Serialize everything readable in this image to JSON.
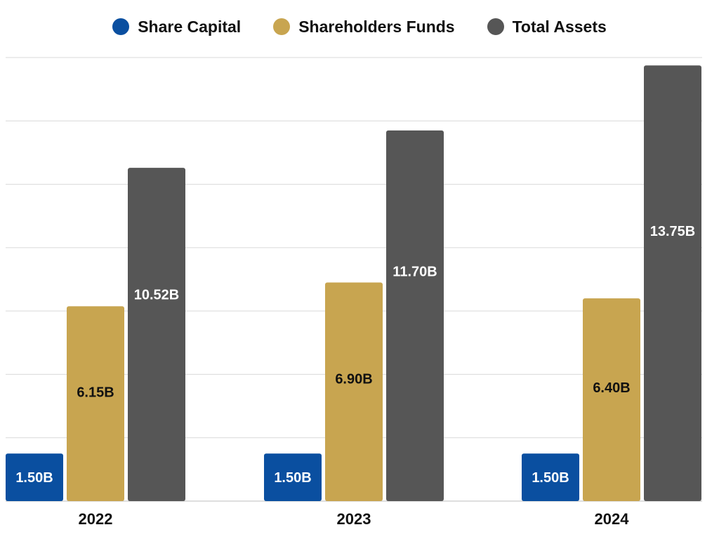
{
  "chart_data": {
    "type": "bar",
    "categories": [
      "2022",
      "2023",
      "2024"
    ],
    "series": [
      {
        "name": "Share Capital",
        "values": [
          1.5,
          1.5,
          1.5
        ],
        "labels": [
          "1.50B",
          "1.50B",
          "1.50B"
        ],
        "color": "#0a4fa0",
        "label_color": "#ffffff"
      },
      {
        "name": "Shareholders Funds",
        "values": [
          6.15,
          6.9,
          6.4
        ],
        "labels": [
          "6.15B",
          "6.90B",
          "6.40B"
        ],
        "color": "#c8a550",
        "label_color": "#111111"
      },
      {
        "name": "Total Assets",
        "values": [
          10.52,
          11.7,
          13.75
        ],
        "labels": [
          "10.52B",
          "11.70B",
          "13.75B"
        ],
        "color": "#565656",
        "label_color": "#ffffff"
      }
    ],
    "ylim": [
      0,
      14
    ],
    "grid": true,
    "legend_position": "top-center",
    "title": "",
    "xlabel": "",
    "ylabel": ""
  }
}
